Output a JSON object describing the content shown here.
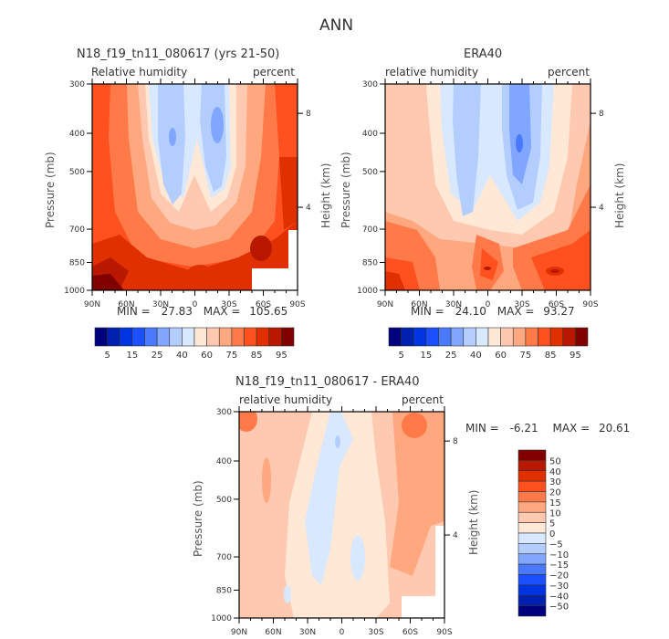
{
  "figure_title": "ANN",
  "palette": {
    "rh": [
      "#00007f",
      "#0020b0",
      "#0034e0",
      "#1c50ff",
      "#4a78ff",
      "#80a6ff",
      "#b4cdff",
      "#d8e8ff",
      "#ffe8d6",
      "#ffc8b0",
      "#ffa880",
      "#ff7a48",
      "#ff5020",
      "#e03000",
      "#b81800",
      "#800000"
    ],
    "diff": [
      "#00007f",
      "#0020b0",
      "#0034e0",
      "#1c50ff",
      "#4a78ff",
      "#80a6ff",
      "#b4cdff",
      "#d8e8ff",
      "#ffe8d6",
      "#ffc8b0",
      "#ffa880",
      "#ff7a48",
      "#ff5020",
      "#e03000",
      "#b81800",
      "#800000"
    ]
  },
  "chart_data": [
    {
      "type": "heatmap",
      "id": "model",
      "title": "N18_f19_tn11_080617 (yrs 21-50)",
      "left_label": "Relative humidity",
      "right_label": "percent",
      "xlabel": "",
      "ylabel": "Pressure (mb)",
      "ylabel_right": "Height (km)",
      "x_ticks": [
        "90N",
        "60N",
        "30N",
        "0",
        "30S",
        "60S",
        "90S"
      ],
      "y_ticks": [
        "300",
        "400",
        "500",
        "700",
        "850",
        "1000"
      ],
      "y_ticks_right": [
        "8",
        "4"
      ],
      "stats": {
        "min_label": "MIN =",
        "min": "27.83",
        "max_label": "MAX =",
        "max": "105.65"
      },
      "levels": [
        "5",
        "15",
        "25",
        "40",
        "60",
        "75",
        "85",
        "95"
      ],
      "contour_levels": [
        5,
        10,
        15,
        20,
        25,
        30,
        40,
        50,
        60,
        70,
        75,
        80,
        85,
        90,
        95
      ]
    },
    {
      "type": "heatmap",
      "id": "obs",
      "title": "ERA40",
      "left_label": "relative humidity",
      "right_label": "percent",
      "xlabel": "",
      "ylabel": "Pressure (mb)",
      "ylabel_right": "Height (km)",
      "x_ticks": [
        "90N",
        "60N",
        "30N",
        "0",
        "30S",
        "60S",
        "90S"
      ],
      "y_ticks": [
        "300",
        "400",
        "500",
        "700",
        "850",
        "1000"
      ],
      "y_ticks_right": [
        "8",
        "4"
      ],
      "stats": {
        "min_label": "MIN =",
        "min": "24.10",
        "max_label": "MAX =",
        "max": "93.27"
      },
      "levels": [
        "5",
        "15",
        "25",
        "40",
        "60",
        "75",
        "85",
        "95"
      ],
      "contour_levels": [
        5,
        10,
        15,
        20,
        25,
        30,
        40,
        50,
        60,
        70,
        75,
        80,
        85,
        90,
        95
      ]
    },
    {
      "type": "heatmap",
      "id": "diff",
      "title": "N18_f19_tn11_080617 - ERA40",
      "left_label": "relative humidity",
      "right_label": "percent",
      "xlabel": "",
      "ylabel": "Pressure (mb)",
      "ylabel_right": "Height (km)",
      "x_ticks": [
        "90N",
        "60N",
        "30N",
        "0",
        "30S",
        "60S",
        "90S"
      ],
      "y_ticks": [
        "300",
        "400",
        "500",
        "700",
        "850",
        "1000"
      ],
      "y_ticks_right": [
        "8",
        "4"
      ],
      "stats": {
        "min_label": "MIN =",
        "min": "-6.21",
        "max_label": "MAX =",
        "max": "20.61"
      },
      "levels": [
        "50",
        "40",
        "30",
        "20",
        "15",
        "10",
        "5",
        "0",
        "−5",
        "−10",
        "−15",
        "−20",
        "−30",
        "−40",
        "−50"
      ]
    }
  ]
}
